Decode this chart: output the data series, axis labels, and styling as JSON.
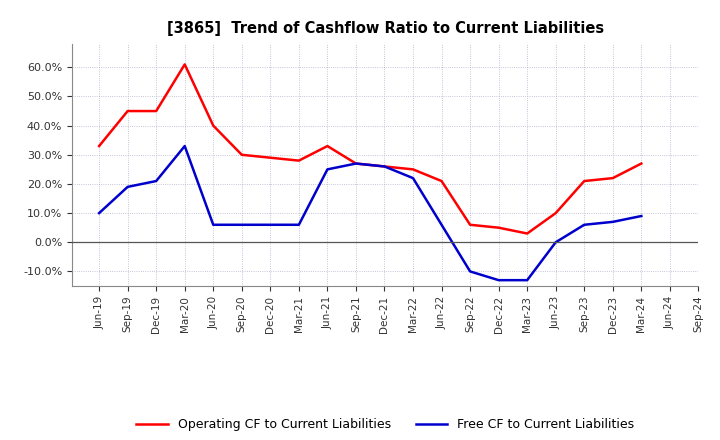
{
  "title": "[3865]  Trend of Cashflow Ratio to Current Liabilities",
  "x_labels": [
    "Jun-19",
    "Sep-19",
    "Dec-19",
    "Mar-20",
    "Jun-20",
    "Sep-20",
    "Dec-20",
    "Mar-21",
    "Jun-21",
    "Sep-21",
    "Dec-21",
    "Mar-22",
    "Jun-22",
    "Sep-22",
    "Dec-22",
    "Mar-23",
    "Jun-23",
    "Sep-23",
    "Dec-23",
    "Mar-24",
    "Jun-24",
    "Sep-24"
  ],
  "operating_cf": [
    0.33,
    0.45,
    0.45,
    0.61,
    0.4,
    0.3,
    0.29,
    0.28,
    0.33,
    0.27,
    0.26,
    0.25,
    0.21,
    0.06,
    0.05,
    0.03,
    0.1,
    0.21,
    0.22,
    0.27,
    null,
    null
  ],
  "free_cf": [
    0.1,
    0.19,
    0.21,
    0.33,
    0.06,
    0.06,
    0.06,
    0.06,
    0.25,
    0.27,
    0.26,
    0.22,
    0.06,
    -0.1,
    -0.13,
    -0.13,
    0.0,
    0.06,
    0.07,
    0.09,
    null,
    null
  ],
  "operating_color": "#ff0000",
  "free_color": "#0000cd",
  "ylim": [
    -0.15,
    0.68
  ],
  "yticks": [
    -0.1,
    0.0,
    0.1,
    0.2,
    0.3,
    0.4,
    0.5,
    0.6
  ],
  "legend_operating": "Operating CF to Current Liabilities",
  "legend_free": "Free CF to Current Liabilities",
  "bg_color": "#ffffff",
  "plot_bg_color": "#ffffff",
  "grid_color": "#aaaacc"
}
